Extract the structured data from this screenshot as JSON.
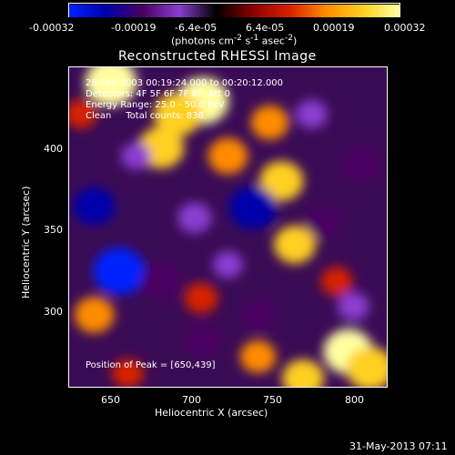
{
  "window": {
    "title": "Reconstructed RHESSI Image"
  },
  "colorbar": {
    "ticks": [
      "-0.00032",
      "-0.00019",
      "-6.4e-05",
      "6.4e-05",
      "0.00019",
      "0.00032"
    ],
    "unit_prefix": "(photons cm",
    "unit_sup1": "-2",
    "unit_mid": " s",
    "unit_sup2": "-1",
    "unit_mid2": " asec",
    "unit_sup3": "-2",
    "unit_suffix": ")",
    "colors": [
      "#0020ff",
      "#0000aa",
      "#4a0060",
      "#8a3cd0",
      "#000000",
      "#8b0000",
      "#d62000",
      "#ff8c00",
      "#ffd020",
      "#ffffa0"
    ]
  },
  "annotations": {
    "line1": "28-Feb-2003 00:19:24.000 to 00:20:12.000",
    "line2": "Detectors: 4F 5F 6F 7F 8F, Att 0",
    "line3": "Energy Range: 25.0 - 50.0 keV",
    "line4": "Clean     Total counts: 838.",
    "peak": "Position of Peak = [650,439]"
  },
  "axes": {
    "xlabel": "Heliocentric X (arcsec)",
    "ylabel": "Heliocentric Y (arcsec)",
    "xticks": [
      "650",
      "700",
      "750",
      "800"
    ],
    "yticks": [
      "400",
      "350",
      "300"
    ]
  },
  "footer": {
    "timestamp": "31-May-2013 07:11"
  },
  "chart_data": {
    "type": "heatmap",
    "title": "Reconstructed RHESSI Image",
    "xlabel": "Heliocentric X (arcsec)",
    "ylabel": "Heliocentric Y (arcsec)",
    "xlim": [
      625,
      815
    ],
    "ylim": [
      257,
      448
    ],
    "color_scale": [
      -0.00032,
      0.00032
    ],
    "peak_position": [
      650,
      439
    ],
    "blobs": [
      {
        "x": 705,
        "y": 428,
        "value": 0.00032
      },
      {
        "x": 690,
        "y": 420,
        "value": 0.00028
      },
      {
        "x": 680,
        "y": 400,
        "value": 0.00026
      },
      {
        "x": 650,
        "y": 439,
        "value": 0.00032
      },
      {
        "x": 720,
        "y": 395,
        "value": 0.0002
      },
      {
        "x": 752,
        "y": 380,
        "value": 0.00024
      },
      {
        "x": 745,
        "y": 415,
        "value": 0.00018
      },
      {
        "x": 760,
        "y": 342,
        "value": 0.00022
      },
      {
        "x": 792,
        "y": 278,
        "value": 0.0003
      },
      {
        "x": 805,
        "y": 268,
        "value": 0.00028
      },
      {
        "x": 765,
        "y": 262,
        "value": 0.00022
      },
      {
        "x": 738,
        "y": 275,
        "value": 0.00016
      },
      {
        "x": 640,
        "y": 300,
        "value": 0.0002
      },
      {
        "x": 632,
        "y": 420,
        "value": 0.00012
      },
      {
        "x": 704,
        "y": 310,
        "value": 0.00014
      },
      {
        "x": 660,
        "y": 265,
        "value": 0.00012
      },
      {
        "x": 785,
        "y": 320,
        "value": 0.00012
      },
      {
        "x": 655,
        "y": 326,
        "value": -0.00032
      },
      {
        "x": 735,
        "y": 364,
        "value": -0.00028
      },
      {
        "x": 640,
        "y": 365,
        "value": -0.00022
      },
      {
        "x": 680,
        "y": 320,
        "value": -0.0002
      },
      {
        "x": 800,
        "y": 390,
        "value": -0.0002
      },
      {
        "x": 705,
        "y": 285,
        "value": -0.00018
      },
      {
        "x": 738,
        "y": 300,
        "value": -0.00016
      },
      {
        "x": 777,
        "y": 355,
        "value": -0.00016
      },
      {
        "x": 700,
        "y": 358,
        "value": -0.00014
      },
      {
        "x": 770,
        "y": 420,
        "value": -0.00012
      },
      {
        "x": 795,
        "y": 305,
        "value": -0.00012
      },
      {
        "x": 665,
        "y": 395,
        "value": -0.0001
      },
      {
        "x": 720,
        "y": 330,
        "value": -0.0001
      }
    ]
  }
}
